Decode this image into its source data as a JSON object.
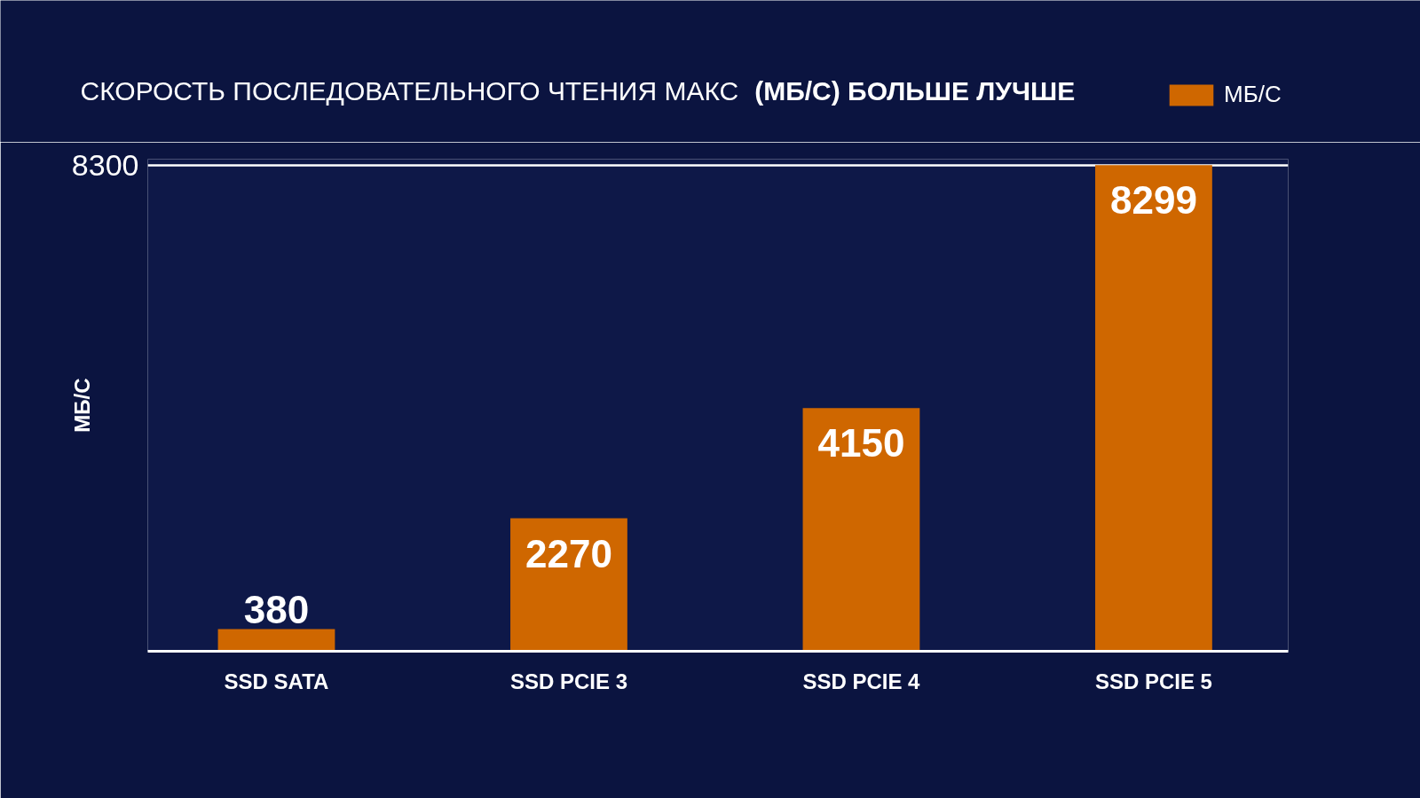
{
  "chart_data": {
    "type": "bar",
    "title": "СКОРОСТЬ ПОСЛЕДОВАТЕЛЬНОГО ЧТЕНИЯ МАКС",
    "subtitle": "(МБ/С) БОЛЬШЕ ЛУЧШЕ",
    "ylabel": "МБ/С",
    "categories": [
      "SSD SATA",
      "SSD PCIE 3",
      "SSD PCIE 4",
      "SSD PCIE 5"
    ],
    "series": [
      {
        "name": "МБ/С",
        "color": "#cf6700",
        "values": [
          380,
          2270,
          4150,
          8299
        ]
      }
    ],
    "ylim": [
      0,
      8400
    ],
    "yticks": [
      8300
    ],
    "grid": "y",
    "legend": "top right",
    "data_labels": true
  }
}
